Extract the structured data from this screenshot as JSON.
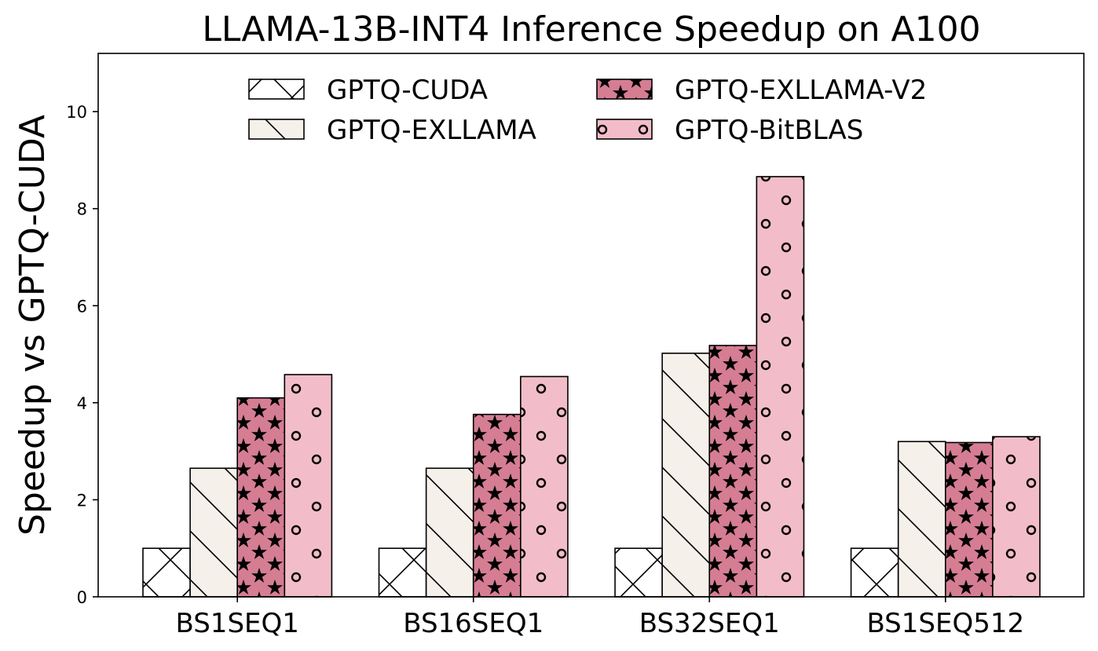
{
  "chart_data": {
    "type": "bar",
    "title": "LLAMA-13B-INT4 Inference Speedup on A100",
    "xlabel": "",
    "ylabel": "Speedup vs GPTQ-CUDA",
    "categories": [
      "BS1SEQ1",
      "BS16SEQ1",
      "BS32SEQ1",
      "BS1SEQ512"
    ],
    "ylim": [
      0,
      11.2
    ],
    "yticks": [
      0,
      2,
      4,
      6,
      8,
      10
    ],
    "grid": false,
    "legend": {
      "placement": "top-center",
      "columns": 2
    },
    "series": [
      {
        "name": "GPTQ-CUDA",
        "values": [
          1.0,
          1.0,
          1.0,
          1.0
        ],
        "color": "#ffffff",
        "hatch": "cross"
      },
      {
        "name": "GPTQ-EXLLAMA",
        "values": [
          2.65,
          2.65,
          5.02,
          3.2
        ],
        "color": "#f5f0ea",
        "hatch": "diagonal"
      },
      {
        "name": "GPTQ-EXLLAMA-V2",
        "values": [
          4.1,
          3.76,
          5.18,
          3.18
        ],
        "color": "#d57d93",
        "hatch": "star"
      },
      {
        "name": "GPTQ-BitBLAS",
        "values": [
          4.58,
          4.54,
          8.66,
          3.3
        ],
        "color": "#f2bdc9",
        "hatch": "circle"
      }
    ]
  }
}
